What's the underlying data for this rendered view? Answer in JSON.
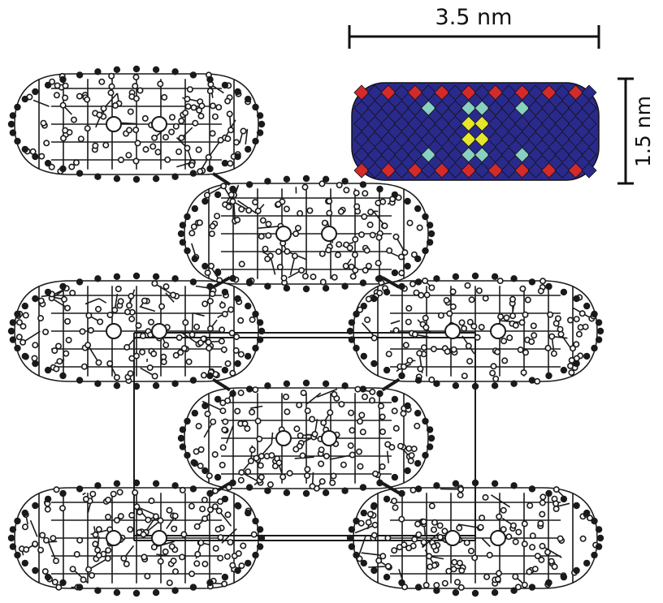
{
  "scale_bars": {
    "horizontal": {
      "label": "3.5 nm"
    },
    "vertical": {
      "label": "1.5 nm"
    }
  },
  "colors": {
    "lattice": "#1a1a1a",
    "polyhedra_main": "#2a2a8c",
    "polyhedra_outer": "#d42a2a",
    "polyhedra_inner": "#88d0c0",
    "polyhedra_core": "#e6e62a"
  },
  "lattice": {
    "molecule_count": 8,
    "unit_cell": "rectangular"
  },
  "inset": {
    "representation": "polyhedral",
    "colors_present": [
      "blue",
      "red",
      "cyan",
      "yellow"
    ]
  }
}
